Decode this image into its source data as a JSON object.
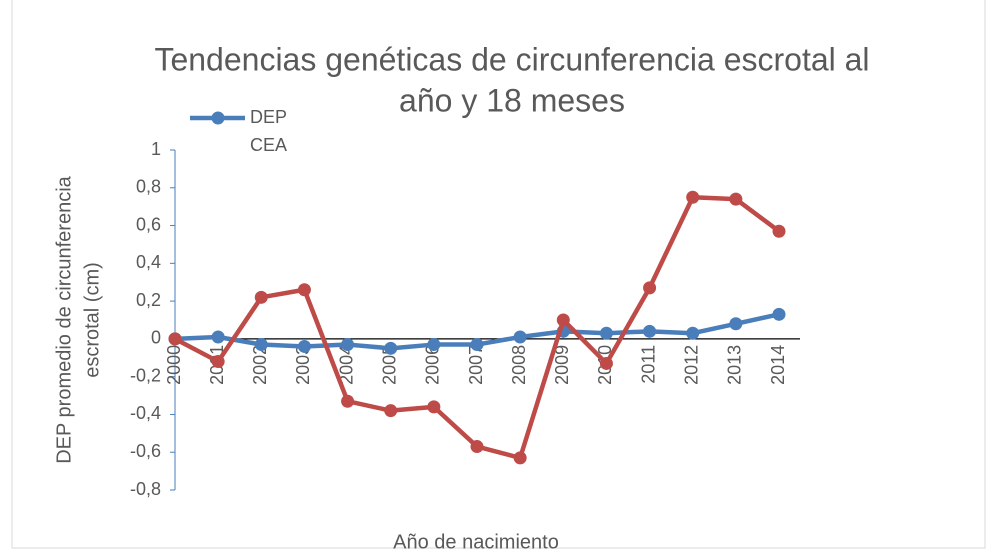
{
  "chart_data": {
    "type": "line",
    "title": [
      "Tendencias genéticas de circunferencia escrotal al",
      "año y 18 meses"
    ],
    "x_label": "Año de nacimiento",
    "y_label": [
      "DEP promedio de circunferencia",
      "escrotal (cm)"
    ],
    "categories": [
      "2000",
      "2001",
      "2002",
      "2003",
      "2004",
      "2005",
      "2006",
      "2007",
      "2008",
      "2009",
      "2010",
      "2011",
      "2012",
      "2013",
      "2014"
    ],
    "series": [
      {
        "name": "DEP CEA",
        "color": "#4a7ebb",
        "values": [
          0,
          0.01,
          -0.03,
          -0.04,
          -0.03,
          -0.05,
          -0.03,
          -0.03,
          0.01,
          0.04,
          0.03,
          0.04,
          0.03,
          0.08,
          0.13
        ]
      },
      {
        "color": "#be4b48",
        "values": [
          0,
          -0.12,
          0.22,
          0.26,
          -0.33,
          -0.38,
          -0.36,
          -0.57,
          -0.63,
          0.1,
          -0.13,
          0.27,
          0.75,
          0.74,
          0.57
        ]
      }
    ],
    "ylim": [
      -0.8,
      1
    ],
    "yticks": [
      {
        "value": -0.8,
        "label": "-0,8"
      },
      {
        "value": -0.6,
        "label": "-0,6"
      },
      {
        "value": -0.4,
        "label": "-0,4"
      },
      {
        "value": -0.2,
        "label": "-0,2"
      },
      0,
      {
        "value": 0.2,
        "label": "0,2"
      },
      {
        "value": 0.4,
        "label": "0,4"
      },
      {
        "value": 0.6,
        "label": "0,6"
      },
      {
        "value": 0.8,
        "label": "0,8"
      },
      1
    ],
    "legend": "top-left"
  }
}
